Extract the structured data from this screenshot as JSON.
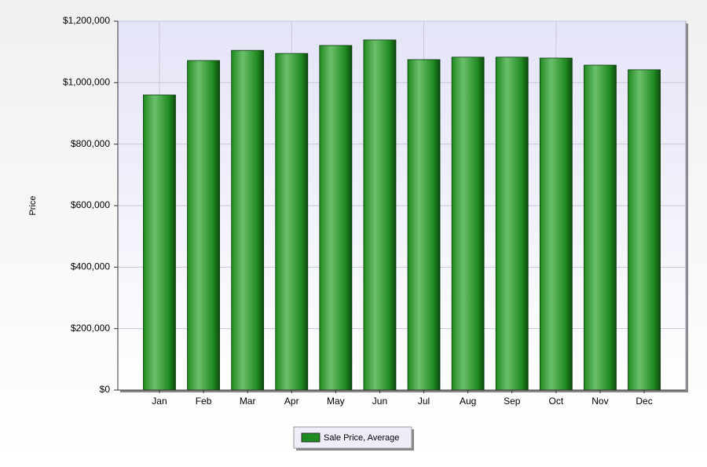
{
  "chart_data": {
    "type": "bar",
    "y_label": "Price",
    "categories": [
      "Jan",
      "Feb",
      "Mar",
      "Apr",
      "May",
      "Jun",
      "Jul",
      "Aug",
      "Sep",
      "Oct",
      "Nov",
      "Dec"
    ],
    "series": [
      {
        "name": "Sale Price, Average",
        "color": "#1f8a1f",
        "values": [
          960000,
          1072000,
          1105000,
          1095000,
          1121000,
          1139000,
          1075000,
          1083000,
          1083000,
          1080000,
          1057000,
          1042000
        ]
      }
    ],
    "ylim": [
      0,
      1200000
    ],
    "yticks": [
      {
        "value": 0,
        "label": "$0"
      },
      {
        "value": 200000,
        "label": "$200,000"
      },
      {
        "value": 400000,
        "label": "$400,000"
      },
      {
        "value": 600000,
        "label": "$600,000"
      },
      {
        "value": 800000,
        "label": "$800,000"
      },
      {
        "value": 1000000,
        "label": "$1,000,000"
      },
      {
        "value": 1200000,
        "label": "$1,200,000"
      }
    ],
    "grid": true,
    "legend": "bottom"
  }
}
